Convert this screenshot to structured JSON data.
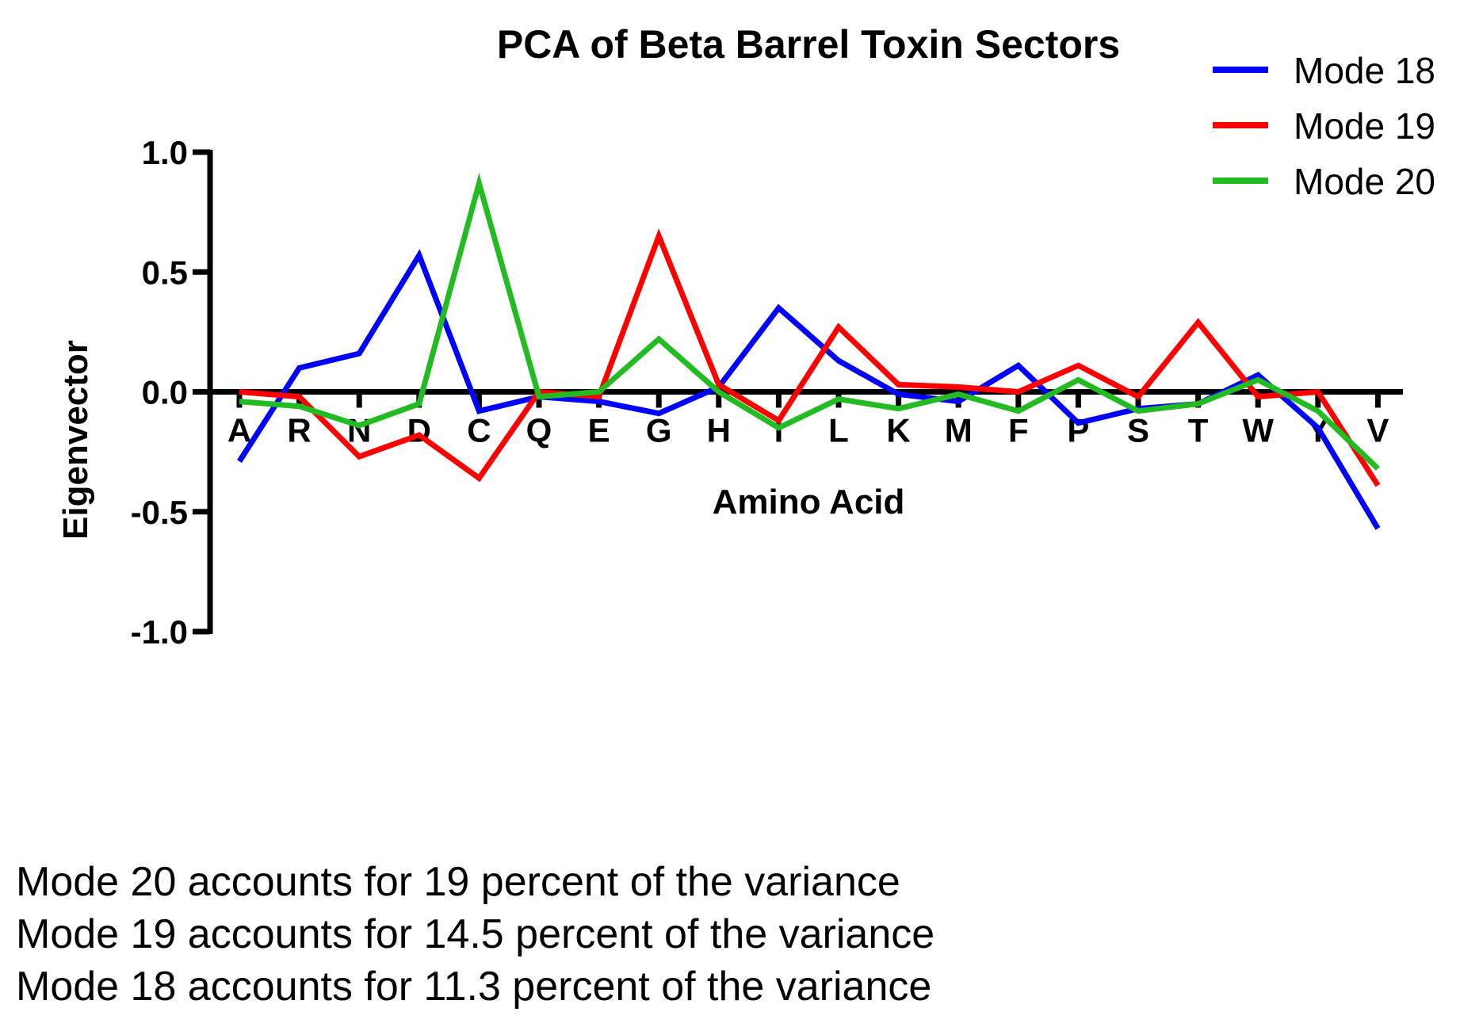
{
  "chart_data": {
    "type": "line",
    "title": "PCA of Beta Barrel Toxin Sectors",
    "xlabel": "Amino Acid",
    "ylabel": "Eigenvector",
    "ylim": [
      -1.0,
      1.0
    ],
    "yticks": [
      "1.0",
      "0.5",
      "0.0",
      "-0.5",
      "-1.0"
    ],
    "ytick_values": [
      1.0,
      0.5,
      0.0,
      -0.5,
      -1.0
    ],
    "categories": [
      "A",
      "R",
      "N",
      "D",
      "C",
      "Q",
      "E",
      "G",
      "H",
      "I",
      "L",
      "K",
      "M",
      "F",
      "P",
      "S",
      "T",
      "W",
      "Y",
      "V"
    ],
    "legend_position": "top-right",
    "grid": false,
    "series": [
      {
        "name": "Mode 18",
        "color": "#0000ff",
        "values": [
          -0.29,
          0.1,
          0.16,
          0.57,
          -0.08,
          -0.02,
          -0.04,
          -0.09,
          0.02,
          0.35,
          0.13,
          -0.01,
          -0.04,
          0.11,
          -0.13,
          -0.07,
          -0.05,
          0.07,
          -0.15,
          -0.57
        ]
      },
      {
        "name": "Mode 19",
        "color": "#ff0000",
        "values": [
          0.0,
          -0.02,
          -0.27,
          -0.18,
          -0.36,
          0.0,
          -0.02,
          0.65,
          0.03,
          -0.12,
          0.27,
          0.03,
          0.02,
          0.0,
          0.11,
          -0.02,
          0.29,
          -0.02,
          0.0,
          -0.39
        ]
      },
      {
        "name": "Mode 20",
        "color": "#22bb22",
        "values": [
          -0.04,
          -0.06,
          -0.14,
          -0.05,
          0.87,
          -0.02,
          0.0,
          0.22,
          0.0,
          -0.15,
          -0.03,
          -0.07,
          -0.01,
          -0.08,
          0.05,
          -0.08,
          -0.05,
          0.05,
          -0.08,
          -0.32
        ]
      }
    ]
  },
  "notes": [
    "Mode 20 accounts for 19 percent of the variance",
    "Mode 19 accounts for 14.5 percent of the variance",
    "Mode 18 accounts for 11.3 percent of the variance"
  ]
}
